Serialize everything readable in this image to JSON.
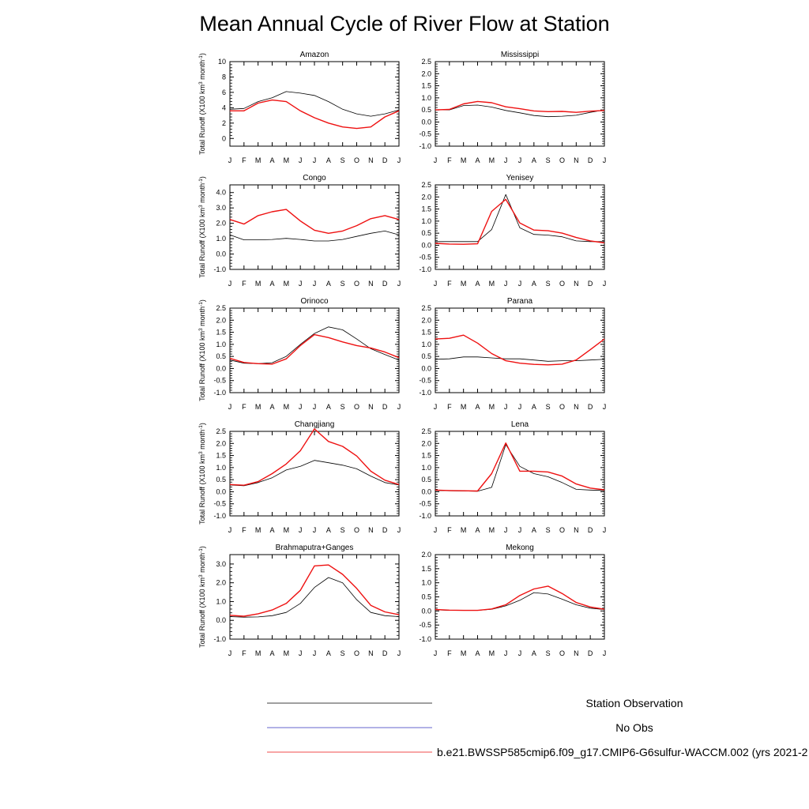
{
  "title": "Mean Annual Cycle of River Flow at Station",
  "ylabel": "Total Runoff (X100 km",
  "ylabel_sup1": "3",
  "ylabel_mid": " month",
  "ylabel_sup2": "-1",
  "ylabel_end": ")",
  "colors": {
    "observation": "#000000",
    "no_obs": "#3333bb",
    "model": "#ee1111"
  },
  "legend": [
    {
      "key": "observation",
      "label": "Station Observation"
    },
    {
      "key": "no_obs",
      "label": "No Obs"
    },
    {
      "key": "model",
      "label": "b.e21.BWSSP585cmip6.f09_g17.CMIP6-G6sulfur-WACCM.002 (yrs 2021-2"
    }
  ],
  "chart_data": [
    {
      "type": "line",
      "title": "Amazon",
      "x": [
        "J",
        "F",
        "M",
        "A",
        "M",
        "J",
        "J",
        "A",
        "S",
        "O",
        "N",
        "D",
        "J"
      ],
      "ylim": [
        -1,
        10
      ],
      "yticks": [
        0,
        2,
        4,
        6,
        8,
        10
      ],
      "ytick_labels": [
        "0",
        "2",
        "4",
        "6",
        "8",
        "10"
      ],
      "series": [
        {
          "key": "observation",
          "values": [
            3.8,
            3.9,
            4.8,
            5.3,
            6.1,
            5.9,
            5.6,
            4.8,
            3.8,
            3.2,
            2.9,
            3.2,
            3.7
          ]
        },
        {
          "key": "model",
          "values": [
            3.6,
            3.6,
            4.6,
            5.0,
            4.8,
            3.6,
            2.7,
            2.0,
            1.5,
            1.3,
            1.5,
            2.8,
            3.6
          ]
        }
      ]
    },
    {
      "type": "line",
      "title": "Mississippi",
      "x": [
        "J",
        "F",
        "M",
        "A",
        "M",
        "J",
        "J",
        "A",
        "S",
        "O",
        "N",
        "D",
        "J"
      ],
      "ylim": [
        -1.0,
        2.5
      ],
      "yticks": [
        -1.0,
        -0.5,
        0.0,
        0.5,
        1.0,
        1.5,
        2.0,
        2.5
      ],
      "ytick_labels": [
        "-1.0",
        "-0.5",
        "0.0",
        "0.5",
        "1.0",
        "1.5",
        "2.0",
        "2.5"
      ],
      "series": [
        {
          "key": "observation",
          "values": [
            0.5,
            0.5,
            0.68,
            0.7,
            0.62,
            0.48,
            0.38,
            0.27,
            0.22,
            0.24,
            0.28,
            0.4,
            0.5
          ]
        },
        {
          "key": "model",
          "values": [
            0.5,
            0.52,
            0.75,
            0.85,
            0.8,
            0.63,
            0.55,
            0.46,
            0.43,
            0.44,
            0.4,
            0.45,
            0.48
          ]
        }
      ]
    },
    {
      "type": "line",
      "title": "Congo",
      "x": [
        "J",
        "F",
        "M",
        "A",
        "M",
        "J",
        "J",
        "A",
        "S",
        "O",
        "N",
        "D",
        "J"
      ],
      "ylim": [
        -1.0,
        4.5
      ],
      "yticks": [
        -1.0,
        0.0,
        1.0,
        2.0,
        3.0,
        4.0
      ],
      "ytick_labels": [
        "-1.0",
        "0.0",
        "1.0",
        "2.0",
        "3.0",
        "4.0"
      ],
      "series": [
        {
          "key": "observation",
          "values": [
            1.25,
            0.92,
            0.92,
            0.95,
            1.02,
            0.95,
            0.85,
            0.85,
            0.95,
            1.15,
            1.35,
            1.5,
            1.25
          ]
        },
        {
          "key": "model",
          "values": [
            2.25,
            1.95,
            2.5,
            2.75,
            2.9,
            2.15,
            1.55,
            1.35,
            1.5,
            1.85,
            2.3,
            2.5,
            2.25
          ]
        }
      ]
    },
    {
      "type": "line",
      "title": "Yenisey",
      "x": [
        "J",
        "F",
        "M",
        "A",
        "M",
        "J",
        "J",
        "A",
        "S",
        "O",
        "N",
        "D",
        "J"
      ],
      "ylim": [
        -1.0,
        2.5
      ],
      "yticks": [
        -1.0,
        -0.5,
        0.0,
        0.5,
        1.0,
        1.5,
        2.0,
        2.5
      ],
      "ytick_labels": [
        "-1.0",
        "-0.5",
        "0.0",
        "0.5",
        "1.0",
        "1.5",
        "2.0",
        "2.5"
      ],
      "series": [
        {
          "key": "observation",
          "values": [
            0.15,
            0.15,
            0.15,
            0.15,
            0.65,
            2.1,
            0.72,
            0.45,
            0.42,
            0.35,
            0.18,
            0.15,
            0.15
          ]
        },
        {
          "key": "model",
          "values": [
            0.08,
            0.05,
            0.04,
            0.06,
            1.4,
            1.9,
            0.92,
            0.63,
            0.6,
            0.5,
            0.32,
            0.18,
            0.1
          ]
        }
      ]
    },
    {
      "type": "line",
      "title": "Orinoco",
      "x": [
        "J",
        "F",
        "M",
        "A",
        "M",
        "J",
        "J",
        "A",
        "S",
        "O",
        "N",
        "D",
        "J"
      ],
      "ylim": [
        -1.0,
        2.5
      ],
      "yticks": [
        -1.0,
        -0.5,
        0.0,
        0.5,
        1.0,
        1.5,
        2.0,
        2.5
      ],
      "ytick_labels": [
        "-1.0",
        "-0.5",
        "0.0",
        "0.5",
        "1.0",
        "1.5",
        "2.0",
        "2.5"
      ],
      "series": [
        {
          "key": "observation",
          "values": [
            0.35,
            0.22,
            0.2,
            0.24,
            0.5,
            1.0,
            1.45,
            1.72,
            1.6,
            1.22,
            0.82,
            0.58,
            0.35
          ]
        },
        {
          "key": "model",
          "values": [
            0.42,
            0.25,
            0.2,
            0.18,
            0.4,
            0.95,
            1.4,
            1.28,
            1.1,
            0.95,
            0.85,
            0.68,
            0.45
          ]
        }
      ]
    },
    {
      "type": "line",
      "title": "Parana",
      "x": [
        "J",
        "F",
        "M",
        "A",
        "M",
        "J",
        "J",
        "A",
        "S",
        "O",
        "N",
        "D",
        "J"
      ],
      "ylim": [
        -1.0,
        2.5
      ],
      "yticks": [
        -1.0,
        -0.5,
        0.0,
        0.5,
        1.0,
        1.5,
        2.0,
        2.5
      ],
      "ytick_labels": [
        "-1.0",
        "-0.5",
        "0.0",
        "0.5",
        "1.0",
        "1.5",
        "2.0",
        "2.5"
      ],
      "series": [
        {
          "key": "observation",
          "values": [
            0.38,
            0.4,
            0.48,
            0.48,
            0.44,
            0.4,
            0.4,
            0.35,
            0.3,
            0.32,
            0.32,
            0.35,
            0.38
          ]
        },
        {
          "key": "model",
          "values": [
            1.22,
            1.25,
            1.38,
            1.05,
            0.62,
            0.32,
            0.22,
            0.17,
            0.15,
            0.18,
            0.35,
            0.78,
            1.22
          ]
        }
      ]
    },
    {
      "type": "line",
      "title": "Changjiang",
      "x": [
        "J",
        "F",
        "M",
        "A",
        "M",
        "J",
        "J",
        "A",
        "S",
        "O",
        "N",
        "D",
        "J"
      ],
      "ylim": [
        -1.0,
        2.5
      ],
      "yticks": [
        -1.0,
        -0.5,
        0.0,
        0.5,
        1.0,
        1.5,
        2.0,
        2.5
      ],
      "ytick_labels": [
        "-1.0",
        "-0.5",
        "0.0",
        "0.5",
        "1.0",
        "1.5",
        "2.0",
        "2.5"
      ],
      "series": [
        {
          "key": "observation",
          "values": [
            0.28,
            0.25,
            0.38,
            0.58,
            0.9,
            1.05,
            1.3,
            1.2,
            1.1,
            0.95,
            0.65,
            0.38,
            0.28
          ]
        },
        {
          "key": "model",
          "values": [
            0.3,
            0.27,
            0.42,
            0.75,
            1.15,
            1.7,
            2.6,
            2.08,
            1.88,
            1.48,
            0.85,
            0.48,
            0.3
          ]
        }
      ]
    },
    {
      "type": "line",
      "title": "Lena",
      "x": [
        "J",
        "F",
        "M",
        "A",
        "M",
        "J",
        "J",
        "A",
        "S",
        "O",
        "N",
        "D",
        "J"
      ],
      "ylim": [
        -1.0,
        2.5
      ],
      "yticks": [
        -1.0,
        -0.5,
        0.0,
        0.5,
        1.0,
        1.5,
        2.0,
        2.5
      ],
      "ytick_labels": [
        "-1.0",
        "-0.5",
        "0.0",
        "0.5",
        "1.0",
        "1.5",
        "2.0",
        "2.5"
      ],
      "series": [
        {
          "key": "observation",
          "values": [
            0.05,
            0.04,
            0.03,
            0.02,
            0.18,
            1.95,
            1.05,
            0.75,
            0.62,
            0.38,
            0.1,
            0.07,
            0.05
          ]
        },
        {
          "key": "model",
          "values": [
            0.07,
            0.05,
            0.04,
            0.03,
            0.75,
            2.02,
            0.85,
            0.85,
            0.82,
            0.65,
            0.32,
            0.15,
            0.08
          ]
        }
      ]
    },
    {
      "type": "line",
      "title": "Brahmaputra+Ganges",
      "x": [
        "J",
        "F",
        "M",
        "A",
        "M",
        "J",
        "J",
        "A",
        "S",
        "O",
        "N",
        "D",
        "J"
      ],
      "ylim": [
        -1.0,
        3.5
      ],
      "yticks": [
        -1.0,
        0.0,
        1.0,
        2.0,
        3.0
      ],
      "ytick_labels": [
        "-1.0",
        "0.0",
        "1.0",
        "2.0",
        "3.0"
      ],
      "series": [
        {
          "key": "observation",
          "values": [
            0.2,
            0.17,
            0.18,
            0.25,
            0.42,
            0.9,
            1.75,
            2.28,
            2.0,
            1.1,
            0.42,
            0.25,
            0.2
          ]
        },
        {
          "key": "model",
          "values": [
            0.27,
            0.22,
            0.35,
            0.55,
            0.9,
            1.6,
            2.9,
            2.95,
            2.45,
            1.7,
            0.8,
            0.45,
            0.3
          ]
        }
      ]
    },
    {
      "type": "line",
      "title": "Mekong",
      "x": [
        "J",
        "F",
        "M",
        "A",
        "M",
        "J",
        "J",
        "A",
        "S",
        "O",
        "N",
        "D",
        "J"
      ],
      "ylim": [
        -1.0,
        2.0
      ],
      "yticks": [
        -1.0,
        -0.5,
        0.0,
        0.5,
        1.0,
        1.5,
        2.0
      ],
      "ytick_labels": [
        "-1.0",
        "-0.5",
        "0.0",
        "0.5",
        "1.0",
        "1.5",
        "2.0"
      ],
      "series": [
        {
          "key": "observation",
          "values": [
            0.04,
            0.02,
            0.02,
            0.02,
            0.06,
            0.18,
            0.38,
            0.65,
            0.6,
            0.42,
            0.22,
            0.1,
            0.05
          ]
        },
        {
          "key": "model",
          "values": [
            0.05,
            0.03,
            0.02,
            0.02,
            0.07,
            0.22,
            0.55,
            0.78,
            0.88,
            0.62,
            0.3,
            0.14,
            0.06
          ]
        }
      ]
    }
  ]
}
